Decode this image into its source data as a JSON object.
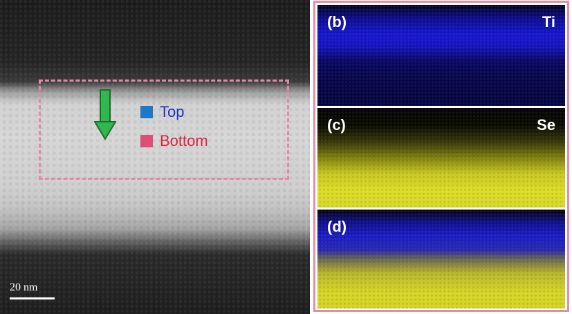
{
  "stem_image": {
    "legend": {
      "top_label": "Top",
      "bottom_label": "Bottom",
      "top_color": "#1f77c8",
      "bottom_color": "#de4f78"
    },
    "scale_bar": {
      "label": "20 nm"
    },
    "roi_box_color": "#e58aa6",
    "arrow_color": "#2fb84f"
  },
  "eds_maps": {
    "panel_border_color": "#e78ba7",
    "panels": [
      {
        "letter": "(b)",
        "element": "Ti",
        "color": "#1616d0"
      },
      {
        "letter": "(c)",
        "element": "Se",
        "color": "#dcdc28"
      },
      {
        "letter": "(d)",
        "element": ""
      }
    ]
  }
}
